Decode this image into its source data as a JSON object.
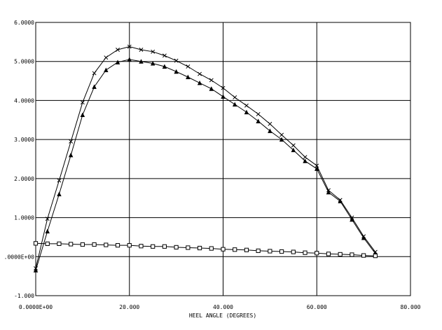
{
  "chart_data": {
    "type": "line",
    "xlabel": "HEEL ANGLE (DEGREES)",
    "ylabel": "",
    "xlim": [
      0,
      80
    ],
    "ylim": [
      -1,
      6
    ],
    "grid": true,
    "xticks": [
      {
        "value": 0,
        "label": "0.0000E+00"
      },
      {
        "value": 20,
        "label": "20.000"
      },
      {
        "value": 40,
        "label": "40.000"
      },
      {
        "value": 60,
        "label": "60.000"
      },
      {
        "value": 80,
        "label": "80.000"
      }
    ],
    "yticks": [
      {
        "value": 6,
        "label": "6.0000"
      },
      {
        "value": 5,
        "label": "5.0000"
      },
      {
        "value": 4,
        "label": "4.0000"
      },
      {
        "value": 3,
        "label": "3.0000"
      },
      {
        "value": 2,
        "label": "2.0000"
      },
      {
        "value": 1,
        "label": "1.0000"
      },
      {
        "value": 0,
        "label": ".0000E+00"
      },
      {
        "value": -1,
        "label": "-1.000"
      }
    ],
    "series": [
      {
        "marker": "x",
        "x": [
          0,
          2.5,
          5,
          7.5,
          10,
          12.5,
          15,
          17.5,
          20,
          22.5,
          25,
          27.5,
          30,
          32.5,
          35,
          37.5,
          40,
          42.5,
          45,
          47.5,
          50,
          52.5,
          55,
          57.5,
          60,
          62.5,
          65,
          67.5,
          70,
          72.5
        ],
        "y": [
          -0.3,
          0.97,
          1.95,
          2.95,
          3.95,
          4.7,
          5.1,
          5.3,
          5.38,
          5.3,
          5.25,
          5.15,
          5.02,
          4.87,
          4.68,
          4.52,
          4.32,
          4.08,
          3.87,
          3.65,
          3.4,
          3.12,
          2.85,
          2.55,
          2.33,
          1.7,
          1.45,
          1.0,
          0.52,
          0.12
        ]
      },
      {
        "marker": "triangle",
        "x": [
          0,
          2.5,
          5,
          7.5,
          10,
          12.5,
          15,
          17.5,
          20,
          22.5,
          25,
          27.5,
          30,
          32.5,
          35,
          37.5,
          40,
          42.5,
          45,
          47.5,
          50,
          52.5,
          55,
          57.5,
          60,
          62.5,
          65,
          67.5,
          70,
          72.5
        ],
        "y": [
          -0.35,
          0.65,
          1.6,
          2.6,
          3.63,
          4.35,
          4.78,
          4.98,
          5.05,
          5.0,
          4.95,
          4.87,
          4.74,
          4.6,
          4.45,
          4.3,
          4.1,
          3.9,
          3.7,
          3.47,
          3.22,
          3.0,
          2.73,
          2.45,
          2.25,
          1.65,
          1.42,
          0.95,
          0.48,
          0.08
        ]
      },
      {
        "marker": "square",
        "x": [
          0,
          2.5,
          5,
          7.5,
          10,
          12.5,
          15,
          17.5,
          20,
          22.5,
          25,
          27.5,
          30,
          32.5,
          35,
          37.5,
          40,
          42.5,
          45,
          47.5,
          50,
          52.5,
          55,
          57.5,
          60,
          62.5,
          65,
          67.5,
          70,
          72.5
        ],
        "y": [
          0.34,
          0.33,
          0.33,
          0.32,
          0.31,
          0.31,
          0.3,
          0.29,
          0.29,
          0.27,
          0.26,
          0.26,
          0.24,
          0.23,
          0.22,
          0.21,
          0.19,
          0.18,
          0.17,
          0.15,
          0.14,
          0.13,
          0.12,
          0.1,
          0.09,
          0.07,
          0.06,
          0.05,
          0.03,
          0.02
        ]
      }
    ]
  }
}
